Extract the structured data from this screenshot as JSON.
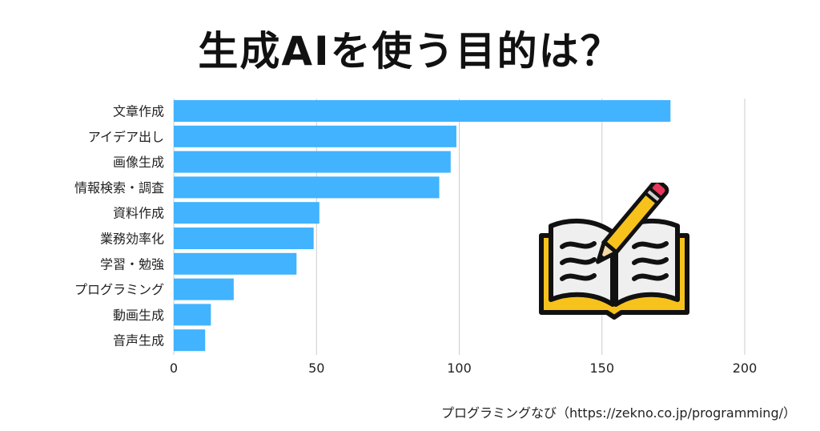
{
  "title": "生成AIを使う目的は？",
  "source": "プログラミングなび（https://zekno.co.jp/programming/）",
  "illustration": "open-book-with-pencil-icon",
  "colors": {
    "bar": "#41b3ff",
    "grid": "#cccccc",
    "book_cover": "#f7c21b",
    "book_outline": "#111111",
    "pencil_body": "#f7c21b",
    "pencil_eraser": "#e8385a"
  },
  "chart_data": {
    "type": "bar",
    "orientation": "horizontal",
    "categories": [
      "文章作成",
      "アイデア出し",
      "画像生成",
      "情報検索・調査",
      "資料作成",
      "業務効率化",
      "学習・勉強",
      "プログラミング",
      "動画生成",
      "音声生成"
    ],
    "values": [
      174,
      99,
      97,
      93,
      51,
      49,
      43,
      21,
      13,
      11
    ],
    "xlim": [
      0,
      200
    ],
    "xticks": [
      0,
      50,
      100,
      150,
      200
    ],
    "grid": "vertical",
    "legend": "none"
  }
}
